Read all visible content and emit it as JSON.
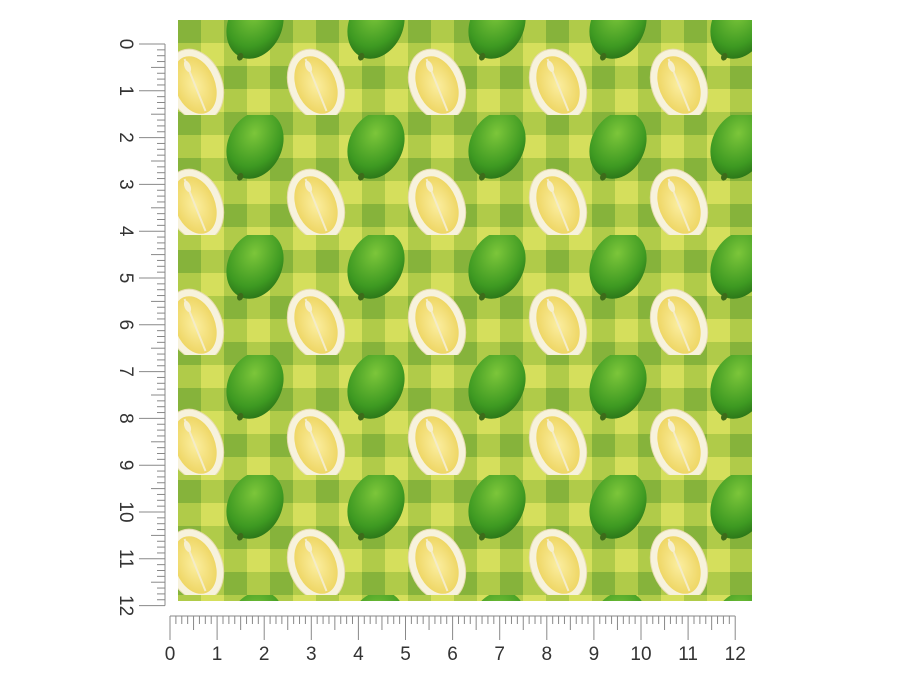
{
  "rulers": {
    "left": {
      "labels": [
        "0",
        "1",
        "2",
        "3",
        "4",
        "5",
        "6",
        "7",
        "8",
        "9",
        "10",
        "11",
        "12"
      ]
    },
    "bottom": {
      "labels": [
        "0",
        "1",
        "2",
        "3",
        "4",
        "5",
        "6",
        "7",
        "8",
        "9",
        "10",
        "11",
        "12"
      ]
    }
  }
}
